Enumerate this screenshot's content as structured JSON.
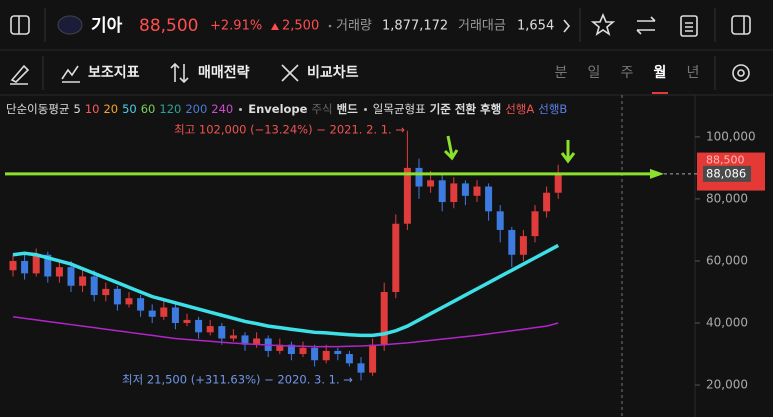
{
  "header": {
    "name": "기아",
    "price": "88,500",
    "change_pct": "+2.91%",
    "change": "2,500",
    "volume_label": "거래량",
    "volume": "1,877,172",
    "turnover_label": "거래대금",
    "turnover": "1,654"
  },
  "toolbar": {
    "indicators": "보조지표",
    "strategy": "매매전략",
    "compare": "비교차트",
    "periods": [
      "분",
      "일",
      "주",
      "월",
      "년"
    ],
    "active_period": "월"
  },
  "chart_data": {
    "type": "candlestick",
    "indicator_legend": {
      "ma_label": "단순이동평균",
      "ma_periods": [
        {
          "period": 5,
          "color": "#dddddd"
        },
        {
          "period": 10,
          "color": "#ff5a5a"
        },
        {
          "period": 20,
          "color": "#f5a623"
        },
        {
          "period": 50,
          "color": "#4dd0e1"
        },
        {
          "period": 60,
          "color": "#7ccf5a"
        },
        {
          "period": 120,
          "color": "#26a69a"
        },
        {
          "period": 200,
          "color": "#4a7bd8"
        },
        {
          "period": 240,
          "color": "#d04ad0"
        }
      ],
      "envelope": "Envelope",
      "stock": "주식",
      "band": "밴드",
      "ichimoku": "일목균형표",
      "base": "기준",
      "conversion": "전환",
      "lagging": "후행",
      "span_a": "선행A",
      "span_b": "선행B"
    },
    "high_annotation": "최고 102,000 (−13.24%) − 2021. 2. 1. →",
    "low_annotation": "최저 21,500 (+311.63%) − 2020. 3. 1. →",
    "up_color": "#e03c3c",
    "down_color": "#3d7be0",
    "candles": {
      "open": [
        57000,
        60000,
        56000,
        62000,
        55000,
        58000,
        52000,
        55000,
        49000,
        51000,
        46000,
        48000,
        44000,
        42000,
        45000,
        40000,
        41000,
        37000,
        39000,
        35000,
        36000,
        33000,
        35000,
        31000,
        33000,
        30000,
        32000,
        28000,
        31000,
        30000,
        27000,
        24000,
        33000,
        50000,
        72000,
        90000,
        84000,
        86000,
        79000,
        85000,
        81000,
        84000,
        76000,
        70000,
        62000,
        68000,
        76000,
        82000
      ],
      "high": [
        62000,
        62000,
        64000,
        63000,
        60000,
        60000,
        57000,
        57000,
        53000,
        52000,
        50000,
        49000,
        46000,
        47000,
        46000,
        43000,
        42000,
        41000,
        40000,
        38000,
        37000,
        37000,
        36000,
        35000,
        34000,
        34000,
        33000,
        33000,
        32000,
        31000,
        29000,
        35000,
        53000,
        75000,
        102000,
        93000,
        89000,
        88000,
        87000,
        86000,
        86000,
        85000,
        78000,
        71000,
        70000,
        78000,
        84000,
        91000
      ],
      "low": [
        55000,
        54000,
        55000,
        53000,
        53000,
        50000,
        50000,
        47000,
        47000,
        44000,
        45000,
        42000,
        40000,
        41000,
        38000,
        39000,
        35000,
        36000,
        33000,
        34000,
        31000,
        32000,
        29000,
        30000,
        28000,
        29000,
        26000,
        27000,
        28000,
        26000,
        21500,
        23000,
        31000,
        48000,
        70000,
        80000,
        82000,
        76000,
        77000,
        78000,
        79000,
        73000,
        66000,
        58000,
        60000,
        66000,
        74000,
        80000
      ],
      "close": [
        60000,
        56000,
        62000,
        55000,
        58000,
        52000,
        55000,
        49000,
        51000,
        46000,
        48000,
        44000,
        42000,
        45000,
        40000,
        41000,
        37000,
        39000,
        35000,
        36000,
        33000,
        35000,
        31000,
        33000,
        30000,
        32000,
        28000,
        31000,
        30000,
        27000,
        24000,
        33000,
        50000,
        72000,
        90000,
        84000,
        86000,
        79000,
        85000,
        81000,
        84000,
        76000,
        70000,
        62000,
        68000,
        76000,
        82000,
        88500
      ]
    },
    "series": [
      {
        "color": "#3ee0e8",
        "values": [
          62000,
          62500,
          62000,
          61000,
          60000,
          59000,
          57500,
          56000,
          54500,
          53000,
          51500,
          50000,
          48500,
          47500,
          46500,
          45500,
          44500,
          43500,
          42500,
          41500,
          40500,
          39800,
          39000,
          38500,
          38000,
          37500,
          37000,
          36800,
          36500,
          36200,
          36000,
          36000,
          36500,
          37500,
          39000,
          41000,
          43000,
          45000,
          47000,
          49000,
          51000,
          53000,
          55000,
          57000,
          59000,
          61000,
          63000,
          65000
        ]
      },
      {
        "color": "#b026c8",
        "values": [
          42000,
          41500,
          41000,
          40500,
          40000,
          39500,
          39000,
          38500,
          38000,
          37500,
          37000,
          36500,
          36000,
          35500,
          35000,
          34700,
          34400,
          34100,
          33800,
          33500,
          33300,
          33100,
          32900,
          32700,
          32600,
          32500,
          32400,
          32400,
          32400,
          32500,
          32600,
          32800,
          33000,
          33300,
          33600,
          34000,
          34400,
          34800,
          35200,
          35600,
          36000,
          36500,
          37000,
          37500,
          38000,
          38500,
          39000,
          40000
        ]
      }
    ],
    "ylim": [
      9700,
      113500
    ],
    "yticks": [
      {
        "value": 20000,
        "label": "20,000"
      },
      {
        "value": 40000,
        "label": "40,000"
      },
      {
        "value": 60000,
        "label": "60,000"
      },
      {
        "value": 80000,
        "label": "80,000"
      },
      {
        "value": 100000,
        "label": "100,000"
      }
    ],
    "price_tags": [
      {
        "value": 88500,
        "label": "88,500",
        "color": "#e53935"
      },
      {
        "value": 88086,
        "label": "88,086",
        "color": "#4a4a4a"
      }
    ],
    "guide_line_color": "#8be02c"
  }
}
